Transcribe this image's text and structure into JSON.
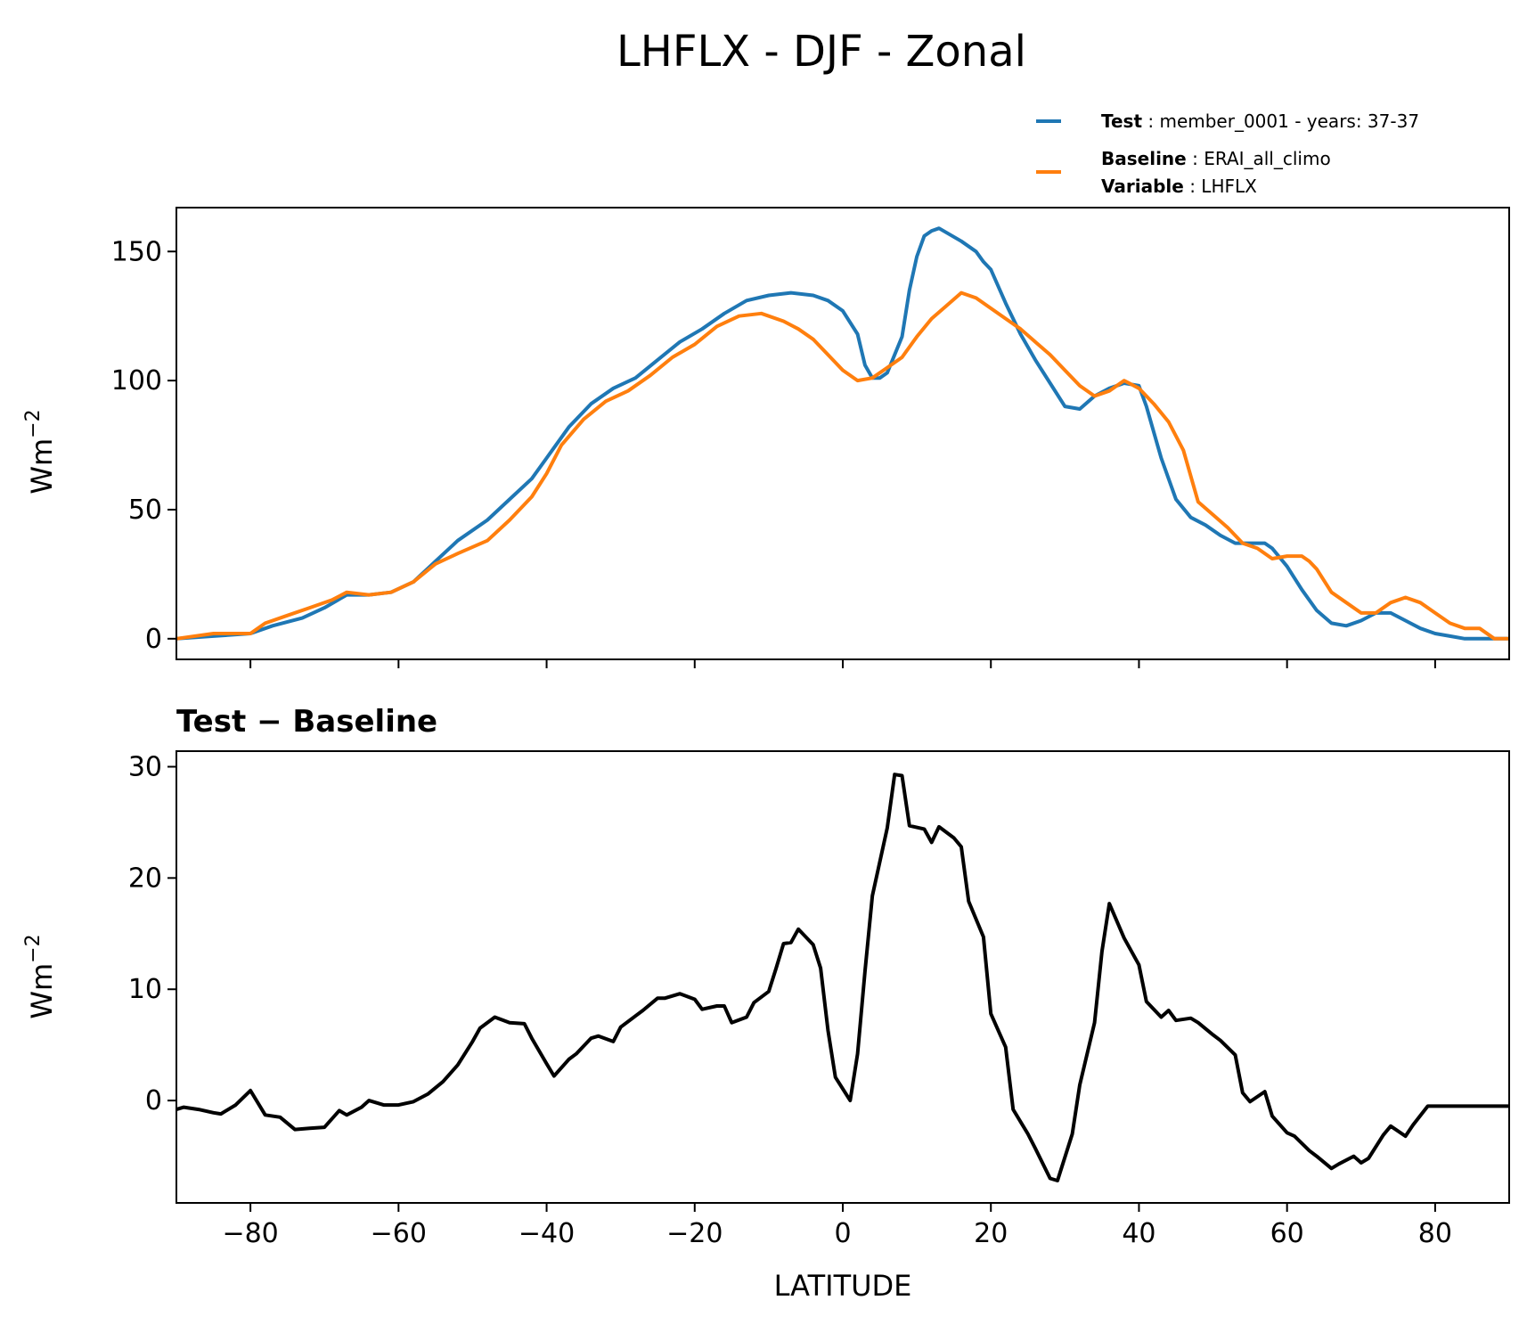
{
  "title": "LHFLX - DJF - Zonal",
  "legend": {
    "test_key": "Test",
    "test_value": "member_0001 - years: 37-37",
    "baseline_key": "Baseline",
    "baseline_value": "ERAI_all_climo",
    "variable_key": "Variable",
    "variable_value": "LHFLX"
  },
  "colors": {
    "test": "#1f77b4",
    "baseline": "#ff7f0e",
    "diff": "#000000"
  },
  "chart_data": [
    {
      "type": "line",
      "title": "",
      "xlabel": "",
      "ylabel": "Wm",
      "ylabel_sup": "−2",
      "xlim": [
        -90,
        90
      ],
      "ylim": [
        -8,
        167
      ],
      "yticks": [
        0,
        50,
        100,
        150
      ],
      "ytick_labels": [
        "0",
        "50",
        "100",
        "150"
      ],
      "xticks": [
        -80,
        -60,
        -40,
        -20,
        0,
        20,
        40,
        60,
        80
      ],
      "series": [
        {
          "name": "Test",
          "points": [
            [
              -90,
              0
            ],
            [
              -85,
              1
            ],
            [
              -80,
              2
            ],
            [
              -77,
              5
            ],
            [
              -73,
              8
            ],
            [
              -70,
              12
            ],
            [
              -67,
              17
            ],
            [
              -64,
              17
            ],
            [
              -61,
              18
            ],
            [
              -58,
              22
            ],
            [
              -55,
              30
            ],
            [
              -52,
              38
            ],
            [
              -48,
              46
            ],
            [
              -45,
              54
            ],
            [
              -42,
              62
            ],
            [
              -40,
              70
            ],
            [
              -37,
              82
            ],
            [
              -34,
              91
            ],
            [
              -31,
              97
            ],
            [
              -28,
              101
            ],
            [
              -25,
              108
            ],
            [
              -22,
              115
            ],
            [
              -19,
              120
            ],
            [
              -16,
              126
            ],
            [
              -13,
              131
            ],
            [
              -10,
              133
            ],
            [
              -7,
              134
            ],
            [
              -4,
              133
            ],
            [
              -2,
              131
            ],
            [
              0,
              127
            ],
            [
              2,
              118
            ],
            [
              3,
              106
            ],
            [
              4,
              101
            ],
            [
              5,
              101
            ],
            [
              6,
              103
            ],
            [
              8,
              117
            ],
            [
              9,
              135
            ],
            [
              10,
              148
            ],
            [
              11,
              156
            ],
            [
              12,
              158
            ],
            [
              13,
              159
            ],
            [
              16,
              154
            ],
            [
              18,
              150
            ],
            [
              19,
              146
            ],
            [
              20,
              143
            ],
            [
              22,
              130
            ],
            [
              24,
              118
            ],
            [
              26,
              108
            ],
            [
              28,
              99
            ],
            [
              30,
              90
            ],
            [
              32,
              89
            ],
            [
              34,
              94
            ],
            [
              36,
              97
            ],
            [
              38,
              99
            ],
            [
              40,
              98
            ],
            [
              41,
              90
            ],
            [
              43,
              70
            ],
            [
              45,
              54
            ],
            [
              47,
              47
            ],
            [
              49,
              44
            ],
            [
              51,
              40
            ],
            [
              53,
              37
            ],
            [
              55,
              37
            ],
            [
              57,
              37
            ],
            [
              58,
              35
            ],
            [
              60,
              28
            ],
            [
              62,
              19
            ],
            [
              64,
              11
            ],
            [
              66,
              6
            ],
            [
              68,
              5
            ],
            [
              70,
              7
            ],
            [
              72,
              10
            ],
            [
              74,
              10
            ],
            [
              76,
              7
            ],
            [
              78,
              4
            ],
            [
              80,
              2
            ],
            [
              82,
              1
            ],
            [
              84,
              0
            ],
            [
              90,
              0
            ]
          ]
        },
        {
          "name": "Baseline",
          "points": [
            [
              -90,
              0
            ],
            [
              -85,
              2
            ],
            [
              -80,
              2
            ],
            [
              -78,
              6
            ],
            [
              -75,
              9
            ],
            [
              -72,
              12
            ],
            [
              -69,
              15
            ],
            [
              -67,
              18
            ],
            [
              -64,
              17
            ],
            [
              -61,
              18
            ],
            [
              -58,
              22
            ],
            [
              -55,
              29
            ],
            [
              -52,
              33
            ],
            [
              -48,
              38
            ],
            [
              -45,
              46
            ],
            [
              -42,
              55
            ],
            [
              -40,
              64
            ],
            [
              -38,
              75
            ],
            [
              -35,
              85
            ],
            [
              -32,
              92
            ],
            [
              -29,
              96
            ],
            [
              -26,
              102
            ],
            [
              -23,
              109
            ],
            [
              -20,
              114
            ],
            [
              -17,
              121
            ],
            [
              -14,
              125
            ],
            [
              -11,
              126
            ],
            [
              -8,
              123
            ],
            [
              -6,
              120
            ],
            [
              -4,
              116
            ],
            [
              -2,
              110
            ],
            [
              0,
              104
            ],
            [
              2,
              100
            ],
            [
              4,
              101
            ],
            [
              6,
              105
            ],
            [
              8,
              109
            ],
            [
              10,
              117
            ],
            [
              12,
              124
            ],
            [
              14,
              129
            ],
            [
              16,
              134
            ],
            [
              18,
              132
            ],
            [
              20,
              128
            ],
            [
              22,
              124
            ],
            [
              24,
              120
            ],
            [
              26,
              115
            ],
            [
              28,
              110
            ],
            [
              30,
              104
            ],
            [
              32,
              98
            ],
            [
              34,
              94
            ],
            [
              36,
              96
            ],
            [
              38,
              100
            ],
            [
              40,
              97
            ],
            [
              42,
              91
            ],
            [
              44,
              84
            ],
            [
              46,
              73
            ],
            [
              48,
              53
            ],
            [
              50,
              48
            ],
            [
              52,
              43
            ],
            [
              54,
              37
            ],
            [
              56,
              35
            ],
            [
              58,
              31
            ],
            [
              60,
              32
            ],
            [
              62,
              32
            ],
            [
              63,
              30
            ],
            [
              64,
              27
            ],
            [
              66,
              18
            ],
            [
              68,
              14
            ],
            [
              70,
              10
            ],
            [
              72,
              10
            ],
            [
              74,
              14
            ],
            [
              76,
              16
            ],
            [
              78,
              14
            ],
            [
              80,
              10
            ],
            [
              82,
              6
            ],
            [
              84,
              4
            ],
            [
              86,
              4
            ],
            [
              88,
              0
            ],
            [
              90,
              0
            ]
          ]
        }
      ]
    },
    {
      "type": "line",
      "title": "Test − Baseline",
      "xlabel": "LATITUDE",
      "ylabel": "Wm",
      "ylabel_sup": "−2",
      "xlim": [
        -90,
        90
      ],
      "ylim": [
        -9.2,
        31.4
      ],
      "yticks": [
        0,
        10,
        20,
        30
      ],
      "ytick_labels": [
        "0",
        "10",
        "20",
        "30"
      ],
      "xticks": [
        -80,
        -60,
        -40,
        -20,
        0,
        20,
        40,
        60,
        80
      ],
      "xtick_labels": [
        "−80",
        "−60",
        "−40",
        "−20",
        "0",
        "20",
        "40",
        "60",
        "80"
      ],
      "series": [
        {
          "name": "Test − Baseline",
          "points": [
            [
              -90,
              -0.8
            ],
            [
              -89,
              -0.6
            ],
            [
              -87,
              -0.8
            ],
            [
              -85,
              -1.1
            ],
            [
              -84,
              -1.2
            ],
            [
              -82,
              -0.4
            ],
            [
              -80,
              0.9
            ],
            [
              -78,
              -1.3
            ],
            [
              -76,
              -1.5
            ],
            [
              -74,
              -2.6
            ],
            [
              -72,
              -2.5
            ],
            [
              -70,
              -2.4
            ],
            [
              -68,
              -0.9
            ],
            [
              -67,
              -1.3
            ],
            [
              -65,
              -0.6
            ],
            [
              -64,
              0.0
            ],
            [
              -62,
              -0.4
            ],
            [
              -60,
              -0.4
            ],
            [
              -58,
              -0.1
            ],
            [
              -56,
              0.6
            ],
            [
              -54,
              1.7
            ],
            [
              -52,
              3.2
            ],
            [
              -50,
              5.3
            ],
            [
              -49,
              6.5
            ],
            [
              -47,
              7.5
            ],
            [
              -45,
              7.0
            ],
            [
              -43,
              6.9
            ],
            [
              -42,
              5.6
            ],
            [
              -40,
              3.3
            ],
            [
              -39,
              2.2
            ],
            [
              -37,
              3.7
            ],
            [
              -36,
              4.2
            ],
            [
              -34,
              5.6
            ],
            [
              -33,
              5.8
            ],
            [
              -31,
              5.3
            ],
            [
              -30,
              6.6
            ],
            [
              -28,
              7.6
            ],
            [
              -27,
              8.1
            ],
            [
              -25,
              9.2
            ],
            [
              -24,
              9.2
            ],
            [
              -22,
              9.6
            ],
            [
              -20,
              9.1
            ],
            [
              -19,
              8.2
            ],
            [
              -17,
              8.5
            ],
            [
              -16,
              8.5
            ],
            [
              -15,
              7.0
            ],
            [
              -13,
              7.5
            ],
            [
              -12,
              8.8
            ],
            [
              -10,
              9.8
            ],
            [
              -9,
              11.9
            ],
            [
              -8,
              14.1
            ],
            [
              -7,
              14.2
            ],
            [
              -6,
              15.4
            ],
            [
              -4,
              14.0
            ],
            [
              -3,
              11.9
            ],
            [
              -2,
              6.3
            ],
            [
              -1,
              2.1
            ],
            [
              1,
              0.0
            ],
            [
              2,
              4.2
            ],
            [
              3,
              11.6
            ],
            [
              4,
              18.4
            ],
            [
              6,
              24.5
            ],
            [
              7,
              29.3
            ],
            [
              8,
              29.2
            ],
            [
              9,
              24.7
            ],
            [
              11,
              24.4
            ],
            [
              12,
              23.2
            ],
            [
              13,
              24.6
            ],
            [
              15,
              23.6
            ],
            [
              16,
              22.8
            ],
            [
              17,
              17.9
            ],
            [
              19,
              14.7
            ],
            [
              20,
              7.8
            ],
            [
              22,
              4.8
            ],
            [
              23,
              -0.8
            ],
            [
              25,
              -3.0
            ],
            [
              26,
              -4.3
            ],
            [
              28,
              -7.0
            ],
            [
              29,
              -7.2
            ],
            [
              31,
              -3.0
            ],
            [
              32,
              1.4
            ],
            [
              34,
              7.0
            ],
            [
              35,
              13.4
            ],
            [
              36,
              17.7
            ],
            [
              38,
              14.6
            ],
            [
              40,
              12.2
            ],
            [
              41,
              8.9
            ],
            [
              43,
              7.5
            ],
            [
              44,
              8.1
            ],
            [
              45,
              7.2
            ],
            [
              47,
              7.4
            ],
            [
              48,
              7.0
            ],
            [
              50,
              5.9
            ],
            [
              51,
              5.4
            ],
            [
              53,
              4.1
            ],
            [
              54,
              0.7
            ],
            [
              55,
              -0.1
            ],
            [
              57,
              0.8
            ],
            [
              58,
              -1.4
            ],
            [
              60,
              -2.9
            ],
            [
              61,
              -3.2
            ],
            [
              63,
              -4.5
            ],
            [
              64,
              -5.0
            ],
            [
              66,
              -6.1
            ],
            [
              67,
              -5.7
            ],
            [
              69,
              -5.0
            ],
            [
              70,
              -5.6
            ],
            [
              71,
              -5.2
            ],
            [
              73,
              -3.1
            ],
            [
              74,
              -2.3
            ],
            [
              76,
              -3.2
            ],
            [
              77,
              -2.2
            ],
            [
              79,
              -0.5
            ],
            [
              81,
              -0.5
            ],
            [
              83,
              -0.5
            ],
            [
              90,
              -0.5
            ]
          ]
        }
      ]
    }
  ]
}
